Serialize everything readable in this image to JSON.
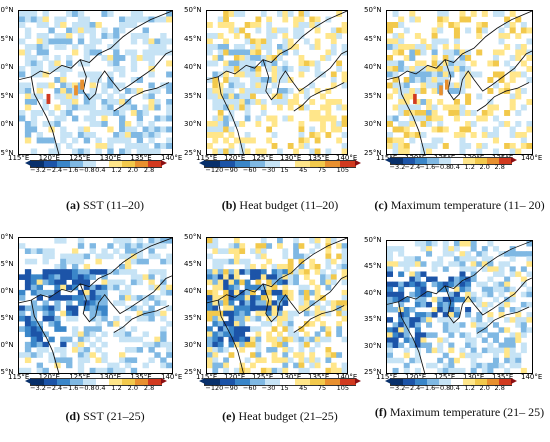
{
  "axes": {
    "yticks": [
      "50°N",
      "45°N",
      "40°N",
      "35°N",
      "30°N",
      "25°N"
    ],
    "xticks": [
      "115°E",
      "120°E",
      "125°E",
      "130°E",
      "135°E",
      "140°E"
    ]
  },
  "colorbars": {
    "sst": [
      "−3.2",
      "−2.4",
      "−1.6",
      "−0.8",
      "0.4",
      "1.2",
      "2.0",
      "2.8"
    ],
    "heat": [
      "−120",
      "−90",
      "−60",
      "−30",
      "15",
      "45",
      "75",
      "105"
    ]
  },
  "palette": [
    "#08306b",
    "#1c54a8",
    "#3a86c9",
    "#7fb8e3",
    "#c6e3f5",
    "#ffffff",
    "#ffe68a",
    "#f2c94c",
    "#e8902f",
    "#d13a1f",
    "#8b0f12"
  ],
  "panels": [
    {
      "id": "a",
      "letter": "(a)",
      "caption": "SST (11–20)"
    },
    {
      "id": "b",
      "letter": "(b)",
      "caption": "Heat budget (11–20)"
    },
    {
      "id": "c",
      "letter": "(c)",
      "caption": "Maximum temperature (11– 20)"
    },
    {
      "id": "d",
      "letter": "(d)",
      "caption": "SST (21–25)"
    },
    {
      "id": "e",
      "letter": "(e)",
      "caption": "Heat budget (21–25)"
    },
    {
      "id": "f",
      "letter": "(f)",
      "caption": "Maximum temperature (21– 25)"
    }
  ]
}
